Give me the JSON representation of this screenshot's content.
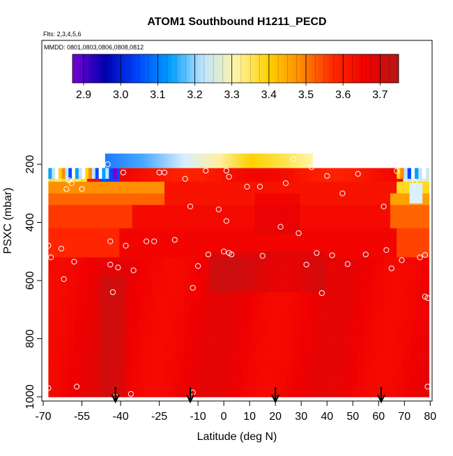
{
  "chart_data": {
    "type": "heatmap",
    "title": "ATOM1 Southbound H1211_PECD",
    "subtitle_flights": "Flts: 2,3,4,5,6",
    "subtitle_dates": "MMDD: 0801,0803,0806,0808,0812",
    "xlabel": "Latitude (deg N)",
    "ylabel": "PSXC (mbar)",
    "xlim": [
      -70,
      81
    ],
    "ylim": [
      1010,
      120
    ],
    "x_ticks": [
      -70,
      -55,
      -40,
      -25,
      -10,
      0,
      10,
      20,
      30,
      40,
      50,
      60,
      70,
      80
    ],
    "x_tick_labels": [
      "-70",
      "-55",
      "-40",
      "-25",
      "-10",
      "0",
      "10",
      "20",
      "30",
      "40",
      "50",
      "60",
      "70",
      "80"
    ],
    "y_ticks": [
      200,
      400,
      600,
      800,
      1000
    ],
    "y_tick_labels": [
      "200",
      "400",
      "600",
      "800",
      "1000"
    ],
    "colorbar": {
      "labels": [
        "2.9",
        "3.0",
        "3.1",
        "3.2",
        "3.3",
        "3.4",
        "3.5",
        "3.6",
        "3.7"
      ],
      "values": [
        2.9,
        3.0,
        3.1,
        3.2,
        3.3,
        3.4,
        3.5,
        3.6,
        3.7
      ],
      "range": [
        2.87,
        3.75
      ],
      "stops": [
        "#7a00d6",
        "#0000b0",
        "#0046ff",
        "#00a0ff",
        "#bfe4ff",
        "#fff4a8",
        "#ffd200",
        "#ff8a00",
        "#ff2800",
        "#f00000",
        "#b41818"
      ]
    },
    "arrows_lat": [
      -42,
      -13,
      20,
      61
    ],
    "samples": [
      {
        "lat": -68,
        "p": 970
      },
      {
        "lat": -68,
        "p": 480
      },
      {
        "lat": -67,
        "p": 520
      },
      {
        "lat": -63,
        "p": 490
      },
      {
        "lat": -62,
        "p": 595
      },
      {
        "lat": -61,
        "p": 285
      },
      {
        "lat": -60,
        "p": 255
      },
      {
        "lat": -59,
        "p": 265
      },
      {
        "lat": -58,
        "p": 535
      },
      {
        "lat": -57,
        "p": 965
      },
      {
        "lat": -55,
        "p": 285
      },
      {
        "lat": -45,
        "p": 200
      },
      {
        "lat": -44,
        "p": 545
      },
      {
        "lat": -44,
        "p": 465
      },
      {
        "lat": -43,
        "p": 640
      },
      {
        "lat": -42,
        "p": 1000
      },
      {
        "lat": -41,
        "p": 555
      },
      {
        "lat": -39,
        "p": 228
      },
      {
        "lat": -38,
        "p": 480
      },
      {
        "lat": -36,
        "p": 990
      },
      {
        "lat": -35,
        "p": 565
      },
      {
        "lat": -30,
        "p": 465
      },
      {
        "lat": -27,
        "p": 465
      },
      {
        "lat": -25,
        "p": 228
      },
      {
        "lat": -23,
        "p": 228
      },
      {
        "lat": -19,
        "p": 460
      },
      {
        "lat": -15,
        "p": 250
      },
      {
        "lat": -13,
        "p": 345
      },
      {
        "lat": -12,
        "p": 625
      },
      {
        "lat": -12,
        "p": 985
      },
      {
        "lat": -10,
        "p": 550
      },
      {
        "lat": -7,
        "p": 222
      },
      {
        "lat": -6,
        "p": 510
      },
      {
        "lat": -2,
        "p": 355
      },
      {
        "lat": 0,
        "p": 500
      },
      {
        "lat": 1,
        "p": 222
      },
      {
        "lat": 1,
        "p": 395
      },
      {
        "lat": 2,
        "p": 505
      },
      {
        "lat": 2,
        "p": 243
      },
      {
        "lat": 3,
        "p": 510
      },
      {
        "lat": 9,
        "p": 277
      },
      {
        "lat": 14,
        "p": 277
      },
      {
        "lat": 15,
        "p": 515
      },
      {
        "lat": 22,
        "p": 415
      },
      {
        "lat": 24,
        "p": 265
      },
      {
        "lat": 27,
        "p": 182
      },
      {
        "lat": 29,
        "p": 437
      },
      {
        "lat": 32,
        "p": 545
      },
      {
        "lat": 34,
        "p": 210
      },
      {
        "lat": 36,
        "p": 505
      },
      {
        "lat": 38,
        "p": 643
      },
      {
        "lat": 40,
        "p": 240
      },
      {
        "lat": 42,
        "p": 513
      },
      {
        "lat": 46,
        "p": 300
      },
      {
        "lat": 48,
        "p": 543
      },
      {
        "lat": 52,
        "p": 233
      },
      {
        "lat": 55,
        "p": 510
      },
      {
        "lat": 62,
        "p": 345
      },
      {
        "lat": 63,
        "p": 495
      },
      {
        "lat": 65,
        "p": 558
      },
      {
        "lat": 67,
        "p": 223
      },
      {
        "lat": 69,
        "p": 530
      },
      {
        "lat": 74,
        "p": 260
      },
      {
        "lat": 76,
        "p": 520
      },
      {
        "lat": 78,
        "p": 512
      },
      {
        "lat": 78,
        "p": 655
      },
      {
        "lat": 79,
        "p": 660
      },
      {
        "lat": 79,
        "p": 965
      }
    ]
  }
}
